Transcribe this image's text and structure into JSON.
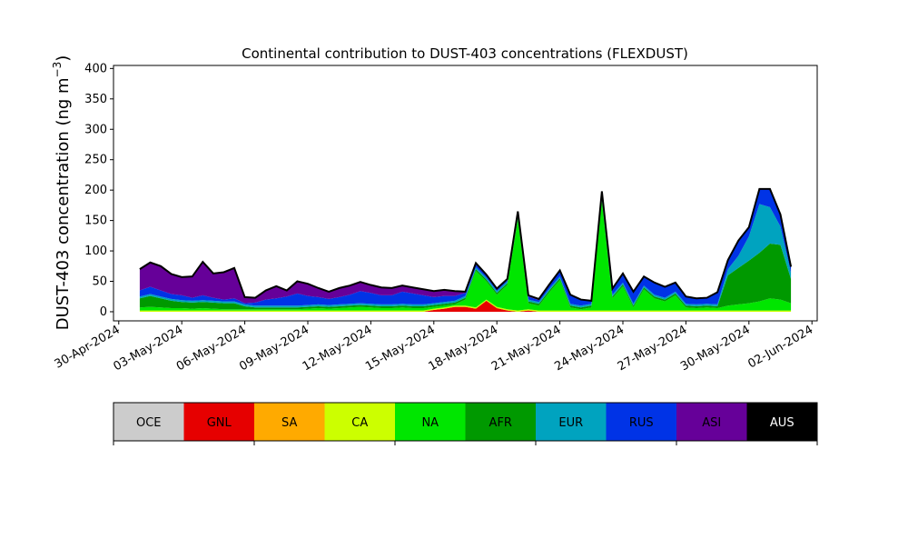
{
  "colors": {
    "OCE": "#cccccc",
    "GNL": "#e60000",
    "SA": "#ffaa00",
    "CA": "#ccff00",
    "NA": "#00e600",
    "AFR": "#009900",
    "EUR": "#00a3bf",
    "RUS": "#0033e6",
    "ASI": "#660099",
    "AUS": "#000000"
  },
  "chart_data": {
    "type": "area",
    "title": "Continental contribution to DUST-403 concentrations (FLEXDUST)",
    "xlabel": "",
    "ylabel": "DUST-403 concentration (ng m",
    "ylabel_sup": "−3",
    "ylabel_end": ")",
    "xlim": [
      "2024-04-29T18:00",
      "2024-06-02T06:00"
    ],
    "ylim": [
      -15,
      405
    ],
    "y_ticks": [
      0,
      50,
      100,
      150,
      200,
      250,
      300,
      350,
      400
    ],
    "x_ticks": [
      {
        "date": "2024-04-30",
        "label": "30-Apr-2024"
      },
      {
        "date": "2024-05-03",
        "label": "03-May-2024"
      },
      {
        "date": "2024-05-06",
        "label": "06-May-2024"
      },
      {
        "date": "2024-05-09",
        "label": "09-May-2024"
      },
      {
        "date": "2024-05-12",
        "label": "12-May-2024"
      },
      {
        "date": "2024-05-15",
        "label": "15-May-2024"
      },
      {
        "date": "2024-05-18",
        "label": "18-May-2024"
      },
      {
        "date": "2024-05-21",
        "label": "21-May-2024"
      },
      {
        "date": "2024-05-24",
        "label": "24-May-2024"
      },
      {
        "date": "2024-05-27",
        "label": "27-May-2024"
      },
      {
        "date": "2024-05-30",
        "label": "30-May-2024"
      },
      {
        "date": "2024-06-02",
        "label": "02-Jun-2024"
      }
    ],
    "x": [
      "2024-05-01",
      "2024-05-01T12:00",
      "2024-05-02",
      "2024-05-02T12:00",
      "2024-05-03",
      "2024-05-03T12:00",
      "2024-05-04",
      "2024-05-04T12:00",
      "2024-05-05",
      "2024-05-05T12:00",
      "2024-05-06",
      "2024-05-06T12:00",
      "2024-05-07",
      "2024-05-07T12:00",
      "2024-05-08",
      "2024-05-08T12:00",
      "2024-05-09",
      "2024-05-09T12:00",
      "2024-05-10",
      "2024-05-10T12:00",
      "2024-05-11",
      "2024-05-11T12:00",
      "2024-05-12",
      "2024-05-12T12:00",
      "2024-05-13",
      "2024-05-13T12:00",
      "2024-05-14",
      "2024-05-14T12:00",
      "2024-05-15",
      "2024-05-15T12:00",
      "2024-05-16",
      "2024-05-16T12:00",
      "2024-05-17",
      "2024-05-17T12:00",
      "2024-05-18",
      "2024-05-18T12:00",
      "2024-05-19",
      "2024-05-19T12:00",
      "2024-05-20",
      "2024-05-20T12:00",
      "2024-05-21",
      "2024-05-21T12:00",
      "2024-05-22",
      "2024-05-22T12:00",
      "2024-05-23",
      "2024-05-23T12:00",
      "2024-05-24",
      "2024-05-24T12:00",
      "2024-05-25",
      "2024-05-25T12:00",
      "2024-05-26",
      "2024-05-26T12:00",
      "2024-05-27",
      "2024-05-27T12:00",
      "2024-05-28",
      "2024-05-28T12:00",
      "2024-05-29",
      "2024-05-29T12:00",
      "2024-05-30",
      "2024-05-30T12:00",
      "2024-05-31",
      "2024-05-31T12:00",
      "2024-06-01"
    ],
    "series": [
      {
        "name": "OCE",
        "values": [
          0,
          0,
          0,
          0,
          0,
          0,
          0,
          0,
          0,
          0,
          0,
          0,
          0,
          0,
          0,
          0,
          0,
          0,
          0,
          0,
          0,
          0,
          0,
          0,
          0,
          0,
          0,
          0,
          0,
          0,
          0,
          0,
          0,
          0,
          0,
          0,
          0,
          0,
          0,
          0,
          0,
          0,
          0,
          0,
          0,
          0,
          0,
          0,
          0,
          0,
          0,
          0,
          0,
          0,
          0,
          0,
          0,
          0,
          0,
          0,
          0,
          0,
          0
        ]
      },
      {
        "name": "GNL",
        "values": [
          0,
          0,
          0,
          0,
          0,
          0,
          0,
          0,
          0,
          0,
          0,
          0,
          0,
          0,
          0,
          0,
          0,
          0,
          0,
          0,
          0,
          0,
          0,
          0,
          0,
          0,
          0,
          0,
          3,
          5,
          8,
          8,
          5,
          18,
          6,
          2,
          0,
          2,
          0,
          0,
          0,
          0,
          0,
          0,
          0,
          0,
          0,
          0,
          0,
          0,
          0,
          0,
          0,
          0,
          0,
          0,
          0,
          0,
          0,
          0,
          0,
          0,
          0
        ]
      },
      {
        "name": "SA",
        "values": [
          0,
          0,
          0,
          0,
          0,
          0,
          0,
          0,
          0,
          0,
          0,
          0,
          0,
          0,
          0,
          0,
          0,
          0,
          0,
          0,
          0,
          0,
          0,
          0,
          0,
          0,
          0,
          0,
          0,
          0,
          0,
          0,
          0,
          0,
          0,
          0,
          0,
          0,
          0,
          0,
          0,
          0,
          0,
          0,
          0,
          0,
          0,
          0,
          0,
          0,
          0,
          0,
          0,
          0,
          0,
          0,
          0,
          0,
          0,
          0,
          0,
          0,
          0
        ]
      },
      {
        "name": "CA",
        "values": [
          2,
          2,
          2,
          2,
          2,
          2,
          2,
          2,
          2,
          2,
          2,
          2,
          2,
          2,
          2,
          2,
          2,
          2,
          2,
          2,
          2,
          2,
          2,
          2,
          2,
          2,
          2,
          2,
          2,
          2,
          2,
          2,
          2,
          2,
          2,
          2,
          2,
          2,
          2,
          2,
          2,
          2,
          2,
          2,
          2,
          2,
          2,
          2,
          2,
          2,
          2,
          2,
          2,
          2,
          2,
          2,
          2,
          2,
          2,
          2,
          2,
          2,
          2
        ]
      },
      {
        "name": "NA",
        "values": [
          5,
          6,
          5,
          4,
          4,
          3,
          4,
          3,
          2,
          2,
          2,
          2,
          2,
          2,
          2,
          2,
          3,
          4,
          3,
          4,
          5,
          6,
          5,
          4,
          4,
          5,
          4,
          4,
          3,
          3,
          2,
          10,
          60,
          30,
          20,
          40,
          150,
          10,
          8,
          30,
          50,
          5,
          2,
          5,
          180,
          20,
          40,
          5,
          35,
          20,
          15,
          25,
          5,
          4,
          5,
          4,
          8,
          10,
          12,
          15,
          20,
          18,
          12
        ]
      },
      {
        "name": "AFR",
        "values": [
          15,
          18,
          15,
          12,
          10,
          10,
          10,
          10,
          10,
          10,
          5,
          3,
          3,
          3,
          3,
          3,
          3,
          3,
          3,
          3,
          3,
          3,
          3,
          3,
          3,
          3,
          3,
          3,
          3,
          3,
          3,
          3,
          3,
          3,
          3,
          3,
          3,
          3,
          3,
          3,
          3,
          3,
          3,
          3,
          3,
          3,
          3,
          3,
          3,
          3,
          3,
          3,
          3,
          3,
          3,
          3,
          50,
          60,
          70,
          80,
          90,
          90,
          40
        ]
      },
      {
        "name": "EUR",
        "values": [
          3,
          3,
          3,
          3,
          3,
          3,
          3,
          3,
          3,
          3,
          3,
          3,
          3,
          3,
          3,
          3,
          3,
          3,
          3,
          3,
          3,
          3,
          3,
          3,
          3,
          3,
          3,
          3,
          3,
          3,
          3,
          3,
          3,
          3,
          3,
          3,
          3,
          3,
          3,
          3,
          3,
          3,
          3,
          3,
          3,
          3,
          3,
          3,
          3,
          3,
          3,
          3,
          3,
          3,
          3,
          3,
          10,
          20,
          40,
          80,
          60,
          30,
          10
        ]
      },
      {
        "name": "RUS",
        "values": [
          10,
          12,
          10,
          8,
          8,
          5,
          8,
          5,
          3,
          5,
          2,
          5,
          10,
          12,
          15,
          20,
          15,
          12,
          10,
          12,
          15,
          20,
          18,
          15,
          15,
          20,
          18,
          15,
          10,
          10,
          8,
          5,
          5,
          3,
          2,
          2,
          5,
          5,
          3,
          5,
          10,
          15,
          10,
          5,
          10,
          10,
          15,
          20,
          15,
          20,
          18,
          15,
          12,
          10,
          10,
          20,
          15,
          25,
          15,
          25,
          30,
          20,
          10
        ]
      },
      {
        "name": "ASI",
        "values": [
          35,
          40,
          40,
          33,
          30,
          35,
          55,
          40,
          45,
          50,
          10,
          8,
          15,
          20,
          10,
          20,
          20,
          15,
          12,
          15,
          15,
          15,
          13,
          13,
          12,
          10,
          10,
          10,
          10,
          10,
          8,
          2,
          2,
          2,
          2,
          2,
          2,
          2,
          2,
          2,
          0,
          0,
          0,
          0,
          0,
          0,
          0,
          0,
          0,
          0,
          0,
          0,
          0,
          0,
          0,
          0,
          0,
          0,
          0,
          0,
          0,
          0,
          0
        ]
      },
      {
        "name": "AUS",
        "values": [
          0,
          0,
          0,
          0,
          0,
          0,
          0,
          0,
          0,
          0,
          0,
          0,
          0,
          0,
          0,
          0,
          0,
          0,
          0,
          0,
          0,
          0,
          0,
          0,
          0,
          0,
          0,
          0,
          0,
          0,
          0,
          0,
          0,
          0,
          0,
          0,
          0,
          0,
          0,
          0,
          0,
          0,
          0,
          0,
          0,
          0,
          0,
          0,
          0,
          0,
          0,
          0,
          0,
          0,
          0,
          0,
          0,
          0,
          0,
          0,
          0,
          0,
          0
        ]
      }
    ],
    "total_line_color": "#000000",
    "legend": [
      "OCE",
      "GNL",
      "SA",
      "CA",
      "NA",
      "AFR",
      "EUR",
      "RUS",
      "ASI",
      "AUS"
    ],
    "legend_placement": "bottom colorbar"
  }
}
